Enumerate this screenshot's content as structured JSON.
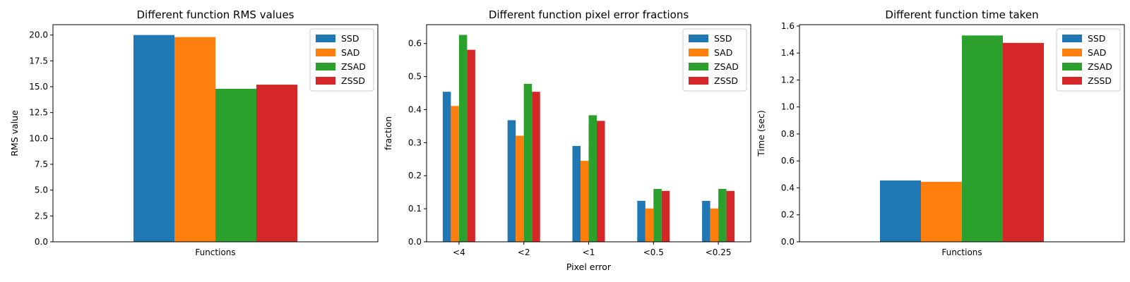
{
  "chart_data": [
    {
      "type": "bar",
      "title": "Different function RMS values",
      "xlabel": "",
      "ylabel": "RMS value",
      "categories": [
        "Functions"
      ],
      "ylim": [
        0,
        21
      ],
      "yticks": [
        0.0,
        2.5,
        5.0,
        7.5,
        10.0,
        12.5,
        15.0,
        17.5,
        20.0
      ],
      "ytick_labels": [
        "0.0",
        "2.5",
        "5.0",
        "7.5",
        "10.0",
        "12.5",
        "15.0",
        "17.5",
        "20.0"
      ],
      "series": [
        {
          "name": "SSD",
          "color": "#1f77b4",
          "values": [
            20.0
          ]
        },
        {
          "name": "SAD",
          "color": "#ff7f0e",
          "values": [
            19.8
          ]
        },
        {
          "name": "ZSAD",
          "color": "#2ca02c",
          "values": [
            14.8
          ]
        },
        {
          "name": "ZSSD",
          "color": "#d62728",
          "values": [
            15.2
          ]
        }
      ],
      "legend": "top-right",
      "grid": false
    },
    {
      "type": "bar",
      "title": "Different function pixel error fractions",
      "xlabel": "Pixel error",
      "ylabel": "fraction",
      "categories": [
        "<4",
        "<2",
        "<1",
        "<0.5",
        "<0.25"
      ],
      "ylim": [
        0,
        0.657
      ],
      "yticks": [
        0.0,
        0.1,
        0.2,
        0.3,
        0.4,
        0.5,
        0.6
      ],
      "ytick_labels": [
        "0.0",
        "0.1",
        "0.2",
        "0.3",
        "0.4",
        "0.5",
        "0.6"
      ],
      "series": [
        {
          "name": "SSD",
          "color": "#1f77b4",
          "values": [
            0.454,
            0.368,
            0.29,
            0.124,
            0.124
          ]
        },
        {
          "name": "SAD",
          "color": "#ff7f0e",
          "values": [
            0.411,
            0.321,
            0.245,
            0.101,
            0.101
          ]
        },
        {
          "name": "ZSAD",
          "color": "#2ca02c",
          "values": [
            0.626,
            0.478,
            0.383,
            0.16,
            0.16
          ]
        },
        {
          "name": "ZSSD",
          "color": "#d62728",
          "values": [
            0.581,
            0.454,
            0.366,
            0.154,
            0.154
          ]
        }
      ],
      "legend": "top-right",
      "grid": false
    },
    {
      "type": "bar",
      "title": "Different function time taken",
      "xlabel": "",
      "ylabel": "Time (sec)",
      "categories": [
        "Functions"
      ],
      "ylim": [
        0,
        1.61
      ],
      "yticks": [
        0.0,
        0.2,
        0.4,
        0.6,
        0.8,
        1.0,
        1.2,
        1.4,
        1.6
      ],
      "ytick_labels": [
        "0.0",
        "0.2",
        "0.4",
        "0.6",
        "0.8",
        "1.0",
        "1.2",
        "1.4",
        "1.6"
      ],
      "series": [
        {
          "name": "SSD",
          "color": "#1f77b4",
          "values": [
            0.455
          ]
        },
        {
          "name": "SAD",
          "color": "#ff7f0e",
          "values": [
            0.445
          ]
        },
        {
          "name": "ZSAD",
          "color": "#2ca02c",
          "values": [
            1.53
          ]
        },
        {
          "name": "ZSSD",
          "color": "#d62728",
          "values": [
            1.475
          ]
        }
      ],
      "legend": "top-right",
      "grid": false
    }
  ]
}
